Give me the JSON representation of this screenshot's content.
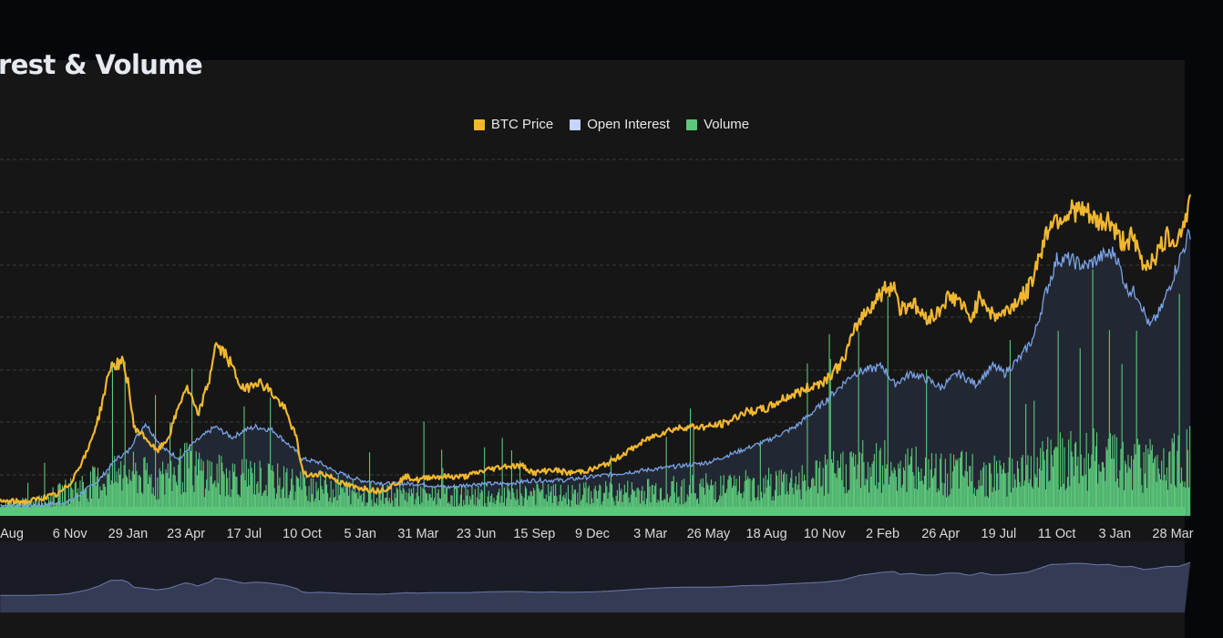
{
  "title": "rest & Volume",
  "legend": [
    {
      "label": "BTC Price",
      "color": "#f0b72f"
    },
    {
      "label": "Open Interest",
      "color": "#c4d3ff"
    },
    {
      "label": "Volume",
      "color": "#5cc77b"
    }
  ],
  "colors": {
    "background": "#161616",
    "grid": "#3b3b3b",
    "price": "#f0b72f",
    "open_interest": "#7aa2e6",
    "open_interest_fill": "#232a36",
    "volume": "#5cc77b",
    "navigator_fill": "#343b55",
    "navigator_line": "#6d78a8",
    "axis_text": "#d9d9d9"
  },
  "chart_data": {
    "type": "line",
    "title": "",
    "xlabel": "",
    "ylabel": "",
    "x_tick_labels": [
      "Aug",
      "6 Nov",
      "29 Jan",
      "23 Apr",
      "17 Jul",
      "10 Oct",
      "5 Jan",
      "31 Mar",
      "23 Jun",
      "15 Sep",
      "9 Dec",
      "3 Mar",
      "26 May",
      "18 Aug",
      "10 Nov",
      "2 Feb",
      "26 Apr",
      "19 Jul",
      "11 Oct",
      "3 Jan",
      "28 Mar"
    ],
    "grid": "horizontal dashed",
    "legend_position": "top-center",
    "ylim": [
      0,
      100
    ],
    "series": [
      {
        "name": "BTC Price",
        "x_index": [
          -0.2,
          0.3,
          0.5,
          0.8,
          1.0,
          1.3,
          1.5,
          1.7,
          1.9,
          2.0,
          2.1,
          2.3,
          2.5,
          2.7,
          2.9,
          3.0,
          3.1,
          3.2,
          3.4,
          3.5,
          3.7,
          3.9,
          4.0,
          4.2,
          4.4,
          4.7,
          4.9,
          5.0,
          5.1,
          5.3,
          5.5,
          5.7,
          5.9,
          6.0,
          6.3,
          6.5,
          6.8,
          7.0,
          7.2,
          7.4,
          7.6,
          7.8,
          8.0,
          8.2,
          8.5,
          8.8,
          9.0,
          9.3,
          9.6,
          10.0,
          10.3,
          10.6,
          11.0,
          11.3,
          11.6,
          12.0,
          12.3,
          12.6,
          13.0,
          13.3,
          13.6,
          14.0,
          14.3,
          14.6,
          15.0,
          15.2,
          15.3,
          15.5,
          15.7,
          15.9,
          16.1,
          16.3,
          16.5,
          16.7,
          16.9,
          17.1,
          17.3,
          17.5,
          17.7,
          17.9,
          18.1,
          18.3,
          18.5,
          18.7,
          18.9,
          19.1,
          19.3,
          19.5,
          19.7,
          19.9,
          20.1,
          20.3
        ],
        "values": [
          4,
          4,
          5,
          6,
          9,
          18,
          28,
          42,
          43,
          38,
          25,
          22,
          18,
          22,
          32,
          36,
          33,
          28,
          38,
          48,
          45,
          38,
          35,
          38,
          36,
          30,
          22,
          13,
          11,
          12,
          11,
          9,
          8,
          8,
          7,
          8,
          11,
          10,
          11,
          11,
          11,
          11,
          12,
          13,
          14,
          14,
          12,
          13,
          12,
          13,
          15,
          18,
          22,
          24,
          25,
          25,
          26,
          29,
          30,
          33,
          35,
          38,
          43,
          55,
          63,
          65,
          58,
          60,
          56,
          56,
          61,
          61,
          55,
          62,
          56,
          57,
          60,
          63,
          73,
          83,
          84,
          86,
          85,
          82,
          83,
          77,
          78,
          70,
          73,
          78,
          78,
          88
        ]
      },
      {
        "name": "Open Interest",
        "x_index": [
          -0.2,
          0.5,
          1.0,
          1.5,
          1.8,
          2.0,
          2.1,
          2.3,
          2.6,
          2.9,
          3.1,
          3.5,
          3.8,
          4.0,
          4.2,
          4.5,
          4.9,
          5.0,
          5.3,
          5.5,
          5.8,
          6.0,
          6.5,
          7.0,
          7.5,
          8.0,
          8.5,
          9.0,
          9.5,
          10.0,
          10.5,
          11.0,
          11.5,
          12.0,
          12.5,
          13.0,
          13.5,
          14.0,
          14.5,
          15.0,
          15.2,
          15.5,
          15.8,
          16.0,
          16.3,
          16.6,
          16.9,
          17.1,
          17.4,
          17.6,
          17.8,
          18.0,
          18.2,
          18.5,
          18.8,
          19.0,
          19.2,
          19.4,
          19.6,
          19.8,
          20.0,
          20.3
        ],
        "values": [
          3,
          3,
          4,
          10,
          16,
          18,
          21,
          26,
          19,
          16,
          20,
          25,
          22,
          24,
          25,
          24,
          18,
          16,
          15,
          13,
          11,
          10,
          9,
          9,
          8,
          9,
          9,
          10,
          10,
          11,
          12,
          13,
          14,
          15,
          18,
          21,
          25,
          32,
          40,
          42,
          37,
          40,
          38,
          36,
          40,
          37,
          42,
          40,
          45,
          50,
          62,
          72,
          72,
          70,
          73,
          74,
          64,
          62,
          53,
          58,
          67,
          80
        ]
      },
      {
        "name": "Volume",
        "x_index": [
          -0.2,
          0.5,
          1.0,
          1.5,
          2.0,
          2.5,
          3.0,
          3.5,
          4.0,
          4.5,
          5.0,
          5.5,
          6.0,
          6.5,
          7.0,
          7.5,
          8.0,
          8.5,
          9.0,
          9.5,
          10.0,
          10.5,
          11.0,
          11.5,
          12.0,
          12.5,
          13.0,
          13.5,
          14.0,
          14.5,
          15.0,
          15.5,
          16.0,
          16.5,
          17.0,
          17.5,
          18.0,
          18.5,
          19.0,
          19.5,
          20.0,
          20.3
        ],
        "values": [
          3,
          5,
          9,
          12,
          15,
          12,
          17,
          14,
          14,
          12,
          11,
          10,
          8,
          7,
          8,
          7,
          7,
          7,
          8,
          7,
          8,
          8,
          9,
          9,
          10,
          10,
          11,
          12,
          14,
          17,
          18,
          16,
          14,
          15,
          14,
          16,
          19,
          20,
          19,
          18,
          21,
          22
        ]
      }
    ]
  }
}
